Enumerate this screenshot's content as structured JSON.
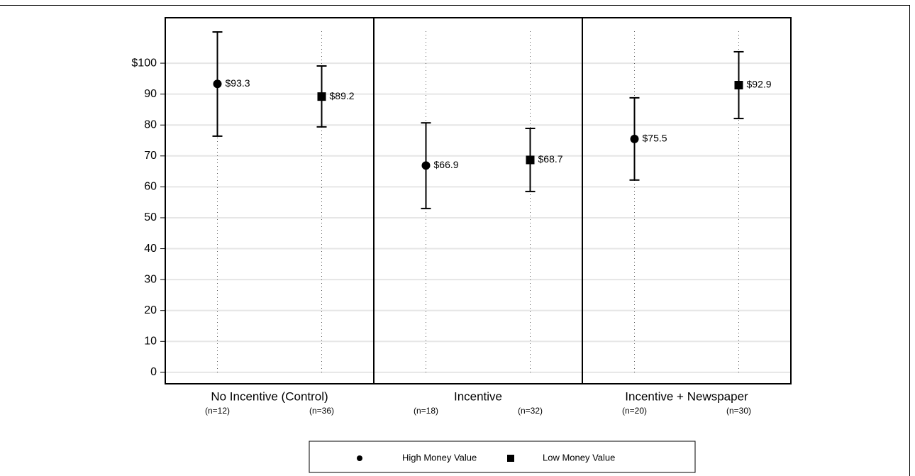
{
  "chart_data": {
    "type": "errorbar",
    "categories": [
      "No Incentive (Control)",
      "Incentive",
      "Incentive + Newspaper"
    ],
    "series": [
      {
        "name": "High Money Value",
        "marker": "circle",
        "color": "#000000",
        "values": [
          93.3,
          66.9,
          75.5
        ],
        "value_labels": [
          "$93.3",
          "$66.9",
          "$75.5"
        ],
        "upper": [
          110.1,
          80.7,
          88.8
        ],
        "lower": [
          76.4,
          53.0,
          62.2
        ],
        "n_labels": [
          "(n=12)",
          "(n=18)",
          "(n=20)"
        ]
      },
      {
        "name": "Low Money Value",
        "marker": "square",
        "color": "#000000",
        "values": [
          89.2,
          68.7,
          92.9
        ],
        "value_labels": [
          "$89.2",
          "$68.7",
          "$92.9"
        ],
        "upper": [
          99.1,
          78.9,
          103.7
        ],
        "lower": [
          79.4,
          58.5,
          82.1
        ],
        "n_labels": [
          "(n=36)",
          "(n=32)",
          "(n=30)"
        ]
      }
    ],
    "ylim": [
      -3.7,
      114.7
    ],
    "yticks": [
      0,
      10,
      20,
      30,
      40,
      50,
      60,
      70,
      80,
      90,
      {
        "value": 100,
        "label": "$100"
      }
    ],
    "grid": true
  }
}
